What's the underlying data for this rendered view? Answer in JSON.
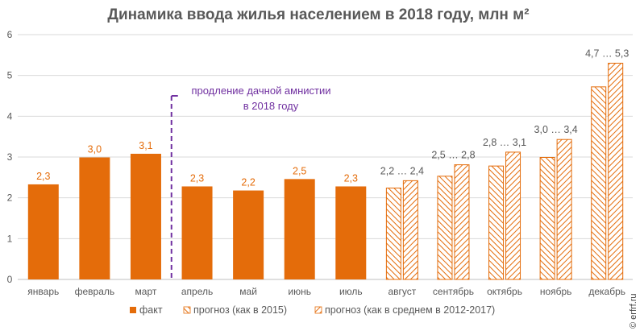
{
  "chart_data": {
    "type": "bar",
    "title": "Динамика ввода жилья населением в 2018 году, млн м²",
    "categories": [
      "январь",
      "февраль",
      "март",
      "апрель",
      "май",
      "июнь",
      "июль",
      "август",
      "сентябрь",
      "октябрь",
      "ноябрь",
      "декабрь"
    ],
    "ylim": [
      0,
      6
    ],
    "yticks": [
      "0",
      "1",
      "2",
      "3",
      "4",
      "5",
      "6"
    ],
    "grid": true,
    "legend_position": "bottom",
    "series": [
      {
        "name": "факт",
        "values": [
          2.33,
          2.99,
          3.08,
          2.28,
          2.18,
          2.46,
          2.28,
          null,
          null,
          null,
          null,
          null
        ],
        "labels": [
          "2,3",
          "3,0",
          "3,1",
          "2,3",
          "2,2",
          "2,5",
          "2,3",
          "",
          "",
          "",
          "",
          ""
        ],
        "color": "#E46C0A"
      },
      {
        "name": "прогноз (как в 2015)",
        "values": [
          null,
          null,
          null,
          null,
          null,
          null,
          null,
          2.24,
          2.53,
          2.78,
          2.99,
          4.72
        ],
        "color": "#E46C0A",
        "pattern": "diagonal-up"
      },
      {
        "name": "прогноз (как в среднем в 2012-2017)",
        "values": [
          null,
          null,
          null,
          null,
          null,
          null,
          null,
          2.42,
          2.81,
          3.12,
          3.43,
          5.3
        ],
        "color": "#E46C0A",
        "pattern": "diagonal-down"
      }
    ],
    "range_labels": [
      "2,2 … 2,4",
      "2,5 … 2,8",
      "2,8 … 3,1",
      "3,0 … 3,4",
      "4,7 … 5,3"
    ],
    "annotation": {
      "lines": [
        "продление дачной амнистии",
        "в 2018 году"
      ],
      "color": "#7030A0"
    }
  },
  "watermark": "© erfrf.ru"
}
